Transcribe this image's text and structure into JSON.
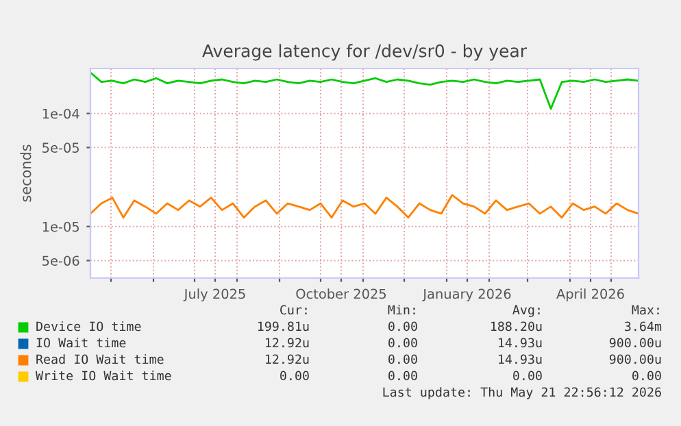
{
  "chart_data": {
    "type": "line",
    "title": "Average latency for /dev/sr0 - by year",
    "ylabel": "seconds",
    "log": "y",
    "xlim": [
      "2025-04-16",
      "2026-05-21"
    ],
    "xticks": [
      {
        "value": "2025-05-01",
        "label": null
      },
      {
        "value": "2025-06-01",
        "label": null
      },
      {
        "value": "2025-07-01",
        "label": null
      },
      {
        "value": "2025-07-16",
        "label": "July 2025"
      },
      {
        "value": "2025-08-01",
        "label": null
      },
      {
        "value": "2025-09-01",
        "label": null
      },
      {
        "value": "2025-10-01",
        "label": null
      },
      {
        "value": "2025-10-16",
        "label": "October 2025"
      },
      {
        "value": "2025-11-01",
        "label": null
      },
      {
        "value": "2025-12-01",
        "label": null
      },
      {
        "value": "2026-01-01",
        "label": null
      },
      {
        "value": "2026-01-16",
        "label": "January 2026"
      },
      {
        "value": "2026-02-01",
        "label": null
      },
      {
        "value": "2026-03-01",
        "label": null
      },
      {
        "value": "2026-04-01",
        "label": null
      },
      {
        "value": "2026-04-16",
        "label": "April 2026"
      },
      {
        "value": "2026-05-01",
        "label": null
      }
    ],
    "ylim": [
      3.5e-06,
      0.00025
    ],
    "yticks": [
      {
        "value": 5e-06,
        "label": "5e-06"
      },
      {
        "value": 1e-05,
        "label": "1e-05"
      },
      {
        "value": 5e-05,
        "label": "5e-05"
      },
      {
        "value": 0.0001,
        "label": "1e-04"
      }
    ],
    "grid": true,
    "legend": "bottom",
    "x": [
      "2025-04-16",
      "2025-04-24",
      "2025-05-02",
      "2025-05-10",
      "2025-05-18",
      "2025-05-26",
      "2025-06-03",
      "2025-06-11",
      "2025-06-19",
      "2025-06-27",
      "2025-07-05",
      "2025-07-13",
      "2025-07-21",
      "2025-07-29",
      "2025-08-06",
      "2025-08-14",
      "2025-08-22",
      "2025-08-30",
      "2025-09-07",
      "2025-09-15",
      "2025-09-23",
      "2025-10-01",
      "2025-10-09",
      "2025-10-17",
      "2025-10-25",
      "2025-11-02",
      "2025-11-10",
      "2025-11-18",
      "2025-11-26",
      "2025-12-04",
      "2025-12-12",
      "2025-12-20",
      "2025-12-28",
      "2026-01-05",
      "2026-01-13",
      "2026-01-21",
      "2026-01-29",
      "2026-02-06",
      "2026-02-14",
      "2026-02-22",
      "2026-03-02",
      "2026-03-10",
      "2026-03-18",
      "2026-03-26",
      "2026-04-03",
      "2026-04-11",
      "2026-04-19",
      "2026-04-27",
      "2026-05-05",
      "2026-05-13",
      "2026-05-21"
    ],
    "series": [
      {
        "name": "Device IO time",
        "color": "#00cc00",
        "values": [
          0.00023,
          0.00019,
          0.000195,
          0.000185,
          0.0002,
          0.00019,
          0.000205,
          0.000185,
          0.000195,
          0.00019,
          0.000185,
          0.000195,
          0.0002,
          0.00019,
          0.000185,
          0.000195,
          0.00019,
          0.0002,
          0.00019,
          0.000185,
          0.000195,
          0.00019,
          0.0002,
          0.00019,
          0.000185,
          0.000195,
          0.000205,
          0.00019,
          0.0002,
          0.000195,
          0.000185,
          0.00018,
          0.00019,
          0.000195,
          0.00019,
          0.0002,
          0.00019,
          0.000185,
          0.000195,
          0.00019,
          0.000195,
          0.0002,
          0.00011,
          0.00019,
          0.000195,
          0.00019,
          0.0002,
          0.00019,
          0.000195,
          0.0002,
          0.000195
        ]
      },
      {
        "name": "IO Wait time",
        "color": "#0066b3",
        "values": [
          null,
          null,
          null,
          null,
          null,
          null,
          null,
          null,
          null,
          null,
          null,
          null,
          null,
          null,
          null,
          null,
          null,
          null,
          null,
          null,
          null,
          null,
          null,
          null,
          null,
          null,
          null,
          null,
          null,
          null,
          null,
          null,
          null,
          null,
          null,
          null,
          null,
          null,
          null,
          null,
          null,
          null,
          null,
          null,
          null,
          null,
          null,
          null,
          null,
          null,
          null
        ]
      },
      {
        "name": "Read IO Wait time",
        "color": "#ff8000",
        "values": [
          1.3e-05,
          1.6e-05,
          1.8e-05,
          1.2e-05,
          1.7e-05,
          1.5e-05,
          1.3e-05,
          1.6e-05,
          1.4e-05,
          1.7e-05,
          1.5e-05,
          1.8e-05,
          1.4e-05,
          1.6e-05,
          1.2e-05,
          1.5e-05,
          1.7e-05,
          1.3e-05,
          1.6e-05,
          1.5e-05,
          1.4e-05,
          1.6e-05,
          1.2e-05,
          1.7e-05,
          1.5e-05,
          1.6e-05,
          1.3e-05,
          1.8e-05,
          1.5e-05,
          1.2e-05,
          1.6e-05,
          1.4e-05,
          1.3e-05,
          1.9e-05,
          1.6e-05,
          1.5e-05,
          1.3e-05,
          1.7e-05,
          1.4e-05,
          1.5e-05,
          1.6e-05,
          1.3e-05,
          1.5e-05,
          1.2e-05,
          1.6e-05,
          1.4e-05,
          1.5e-05,
          1.3e-05,
          1.6e-05,
          1.4e-05,
          1.3e-05
        ]
      },
      {
        "name": "Write IO Wait time",
        "color": "#ffcc00",
        "values": [
          null,
          null,
          null,
          null,
          null,
          null,
          null,
          null,
          null,
          null,
          null,
          null,
          null,
          null,
          null,
          null,
          null,
          null,
          null,
          null,
          null,
          null,
          null,
          null,
          null,
          null,
          null,
          null,
          null,
          null,
          null,
          null,
          null,
          null,
          null,
          null,
          null,
          null,
          null,
          null,
          null,
          null,
          null,
          null,
          null,
          null,
          null,
          null,
          null,
          null,
          null
        ]
      }
    ],
    "annotations": [
      "Cur:",
      "Min:",
      "Avg:",
      "Max:",
      "199.81u",
      "0.00",
      "188.20u",
      "3.64m",
      "12.92u",
      "0.00",
      "14.93u",
      "900.00u",
      "12.92u",
      "0.00",
      "14.93u",
      "900.00u",
      "0.00",
      "0.00",
      "0.00",
      "0.00",
      "Last update: Thu May 21 22:56:12 2026"
    ]
  }
}
